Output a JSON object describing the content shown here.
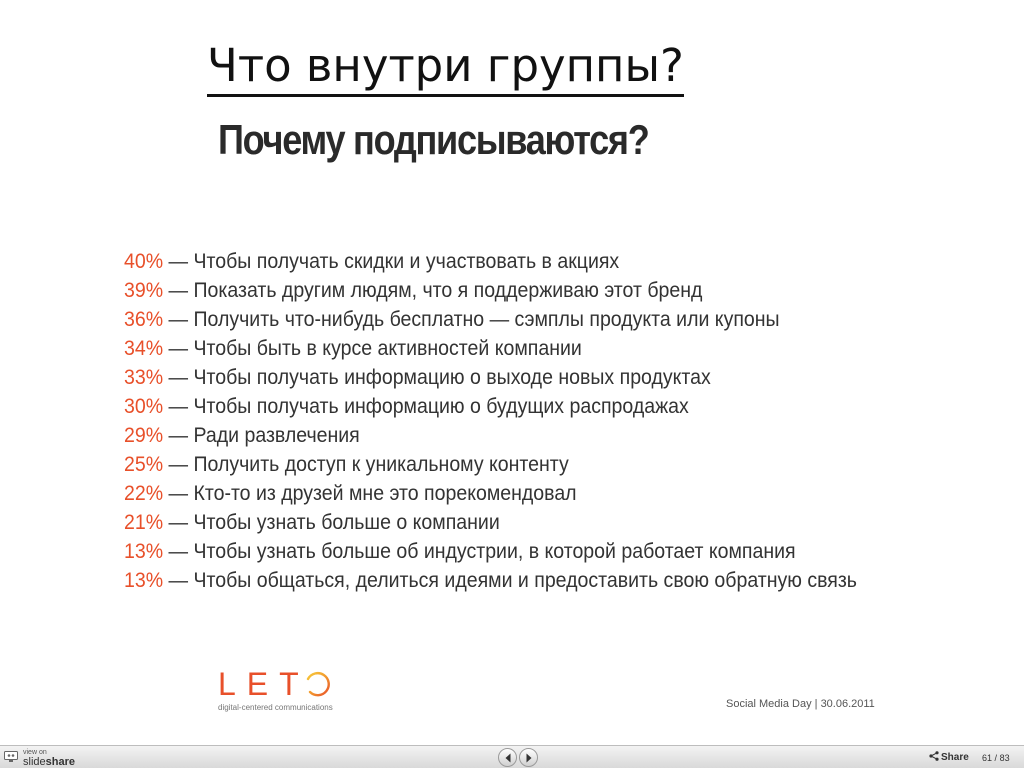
{
  "slide": {
    "title": "Что внутри группы?",
    "subtitle": "Почему подписываются?",
    "separator": "—",
    "reasons": [
      {
        "percent": "40%",
        "text": "Чтобы получать скидки и участвовать в акциях"
      },
      {
        "percent": "39%",
        "text": "Показать другим людям, что я поддерживаю этот бренд"
      },
      {
        "percent": "36%",
        "text": "Получить что-нибудь бесплатно — сэмплы продукта или купоны"
      },
      {
        "percent": "34%",
        "text": "Чтобы быть в курсе активностей компании"
      },
      {
        "percent": "33%",
        "text": "Чтобы получать информацию о выходе новых продуктах"
      },
      {
        "percent": "30%",
        "text": "Чтобы получать информацию о будущих распродажах"
      },
      {
        "percent": "29%",
        "text": "Ради развлечения"
      },
      {
        "percent": "25%",
        "text": "Получить доступ к уникальному контенту"
      },
      {
        "percent": "22%",
        "text": "Кто-то из друзей мне это порекомендовал"
      },
      {
        "percent": "21%",
        "text": "Чтобы узнать больше о компании"
      },
      {
        "percent": "13%",
        "text": "Чтобы узнать больше об индустрии, в которой работает компания"
      },
      {
        "percent": "13%",
        "text": "Чтобы общаться, делиться идеями и предоставить свою обратную связь"
      }
    ],
    "logo": {
      "word": "LET",
      "tagline": "digital-centered communications"
    },
    "event": "Social Media Day | 30.06.2011"
  },
  "toolbar": {
    "brand_small": "view on",
    "brand_name_light": "slide",
    "brand_name_bold": "share",
    "prev_icon": "chevron-left-icon",
    "next_icon": "chevron-right-icon",
    "share_label": "Share",
    "current_page": "61",
    "page_separator": "/",
    "total_pages": "83"
  },
  "colors": {
    "accent": "#e8502a",
    "text": "#333333",
    "toolbar": "#e3e3e3"
  }
}
